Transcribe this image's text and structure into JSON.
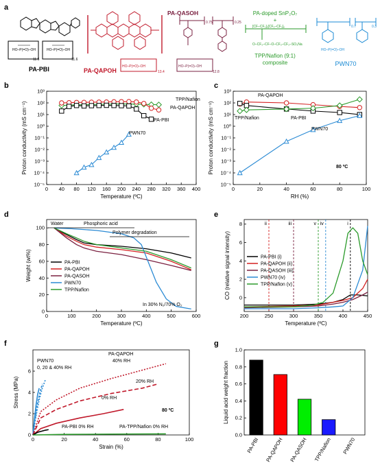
{
  "panel_a": {
    "panel_label": "a",
    "structures": [
      {
        "name": "PA-PBI",
        "color": "#000000",
        "subscripts": [
          "11.6",
          "11.6"
        ]
      },
      {
        "name": "PA-QAPOH",
        "color": "#c0182a",
        "subscripts": [
          "13.4"
        ]
      },
      {
        "name": "PA-QASOH",
        "color": "#7a2040",
        "subscripts": [
          "0.75",
          "0.25",
          "12.8"
        ]
      },
      {
        "name": "PA-doped SnP₂O₇ + TPP/Nafion (9:1) composite",
        "lines": [
          "PA-doped SnP₂O₇",
          "+",
          "TPP/Nafion (9:1)",
          "composite"
        ],
        "color": "#2a9a2a"
      },
      {
        "name": "PWN70",
        "color": "#1a8ad4",
        "subscripts": [
          "0.7",
          "0.3"
        ]
      }
    ]
  },
  "chart_data": [
    {
      "panel": "b",
      "type": "line",
      "xlabel": "Temperature (ºC)",
      "ylabel": "Proton conductivity (mS cm⁻¹)",
      "xlim": [
        0,
        400
      ],
      "ylim_log10": [
        -5,
        3
      ],
      "yscale": "log",
      "xticks": [
        "0",
        "40",
        "80",
        "120",
        "160",
        "200",
        "240",
        "280",
        "320",
        "360",
        "400"
      ],
      "yticks": [
        "10⁻⁵",
        "10⁻⁴",
        "10⁻³",
        "10⁻²",
        "10⁻¹",
        "10⁰",
        "10¹",
        "10²",
        "10³"
      ],
      "series": [
        {
          "name": "TPP/Nafion",
          "color": "#2a9a2a",
          "marker": "diamond",
          "x": [
            40,
            60,
            80,
            100,
            120,
            140,
            160,
            180,
            200,
            220,
            240,
            260,
            280,
            300
          ],
          "y": [
            60,
            65,
            68,
            70,
            72,
            75,
            78,
            80,
            82,
            80,
            78,
            75,
            72,
            70
          ]
        },
        {
          "name": "PA-QAPOH",
          "color": "#d42020",
          "marker": "circle",
          "x": [
            40,
            60,
            80,
            100,
            120,
            140,
            160,
            180,
            200,
            220,
            240,
            260,
            280,
            300
          ],
          "y": [
            100,
            105,
            110,
            112,
            115,
            118,
            120,
            125,
            128,
            130,
            120,
            90,
            35,
            25
          ]
        },
        {
          "name": "PA-PBI",
          "color": "#000000",
          "marker": "square",
          "x": [
            40,
            60,
            80,
            100,
            120,
            140,
            160,
            180,
            200,
            220,
            240,
            260,
            280
          ],
          "y": [
            20,
            50,
            60,
            55,
            58,
            60,
            62,
            60,
            58,
            55,
            30,
            8,
            4
          ]
        },
        {
          "name": "PWN70",
          "color": "#2a8ad4",
          "marker": "triangle",
          "x": [
            80,
            100,
            120,
            140,
            160,
            180,
            200,
            220
          ],
          "y": [
            0.0001,
            0.0003,
            0.0005,
            0.002,
            0.006,
            0.015,
            0.04,
            0.2
          ]
        }
      ]
    },
    {
      "panel": "c",
      "type": "line",
      "xlabel": "RH (%)",
      "ylabel": "Proton conductivity (mS cm⁻¹)",
      "annotation": "80 ºC",
      "xlim": [
        0,
        100
      ],
      "ylim_log10": [
        -5,
        3
      ],
      "yscale": "log",
      "xticks": [
        "0",
        "20",
        "40",
        "60",
        "80",
        "100"
      ],
      "yticks": [
        "10⁻⁵",
        "10⁻⁴",
        "10⁻³",
        "10⁻²",
        "10⁻¹",
        "10⁰",
        "10¹",
        "10²",
        "10³"
      ],
      "series": [
        {
          "name": "PA-QAPOH",
          "color": "#d42020",
          "marker": "circle",
          "x": [
            5,
            10,
            40,
            60,
            80,
            95
          ],
          "y": [
            80,
            120,
            100,
            70,
            50,
            40
          ]
        },
        {
          "name": "PA-PBI",
          "color": "#000000",
          "marker": "square",
          "x": [
            5,
            10,
            40,
            60,
            80,
            95
          ],
          "y": [
            90,
            60,
            30,
            20,
            15,
            10
          ]
        },
        {
          "name": "TPP/Nafion",
          "color": "#2a9a2a",
          "marker": "diamond",
          "x": [
            5,
            10,
            40,
            60,
            80,
            95
          ],
          "y": [
            20,
            25,
            30,
            35,
            60,
            200
          ]
        },
        {
          "name": "PWN70",
          "color": "#2a8ad4",
          "marker": "triangle",
          "x": [
            5,
            40,
            60,
            80,
            95
          ],
          "y": [
            0.0001,
            0.05,
            0.5,
            3,
            8
          ]
        }
      ]
    },
    {
      "panel": "d",
      "type": "line",
      "xlabel": "Temperature (ºC)",
      "ylabel": "Weight (wt%)",
      "annotation": "In 30% N₂/70% O₂",
      "region_labels": [
        "Water",
        "Phosphoric acid",
        "Polymer degradation"
      ],
      "xlim": [
        0,
        600
      ],
      "ylim": [
        0,
        110
      ],
      "xticks": [
        "0",
        "100",
        "200",
        "300",
        "400",
        "500",
        "600"
      ],
      "yticks": [
        "0",
        "20",
        "40",
        "60",
        "80",
        "100"
      ],
      "series": [
        {
          "name": "PA-PBI",
          "color": "#000000",
          "x": [
            30,
            80,
            120,
            150,
            200,
            300,
            400,
            500,
            580
          ],
          "y": [
            100,
            92,
            86,
            82,
            80,
            78,
            75,
            70,
            64
          ]
        },
        {
          "name": "PA-QAPOH",
          "color": "#d42020",
          "x": [
            30,
            80,
            120,
            150,
            200,
            300,
            400,
            500,
            580
          ],
          "y": [
            100,
            90,
            84,
            80,
            77,
            74,
            70,
            60,
            50
          ]
        },
        {
          "name": "PA-QASOH",
          "color": "#7a2040",
          "x": [
            30,
            80,
            120,
            150,
            200,
            300,
            400,
            500,
            580
          ],
          "y": [
            100,
            88,
            80,
            76,
            72,
            68,
            62,
            55,
            49
          ]
        },
        {
          "name": "PWN70",
          "color": "#2a8ad4",
          "x": [
            30,
            100,
            200,
            300,
            350,
            380,
            400,
            440,
            480,
            520,
            580
          ],
          "y": [
            100,
            99,
            97,
            93,
            88,
            80,
            65,
            35,
            15,
            6,
            3
          ]
        },
        {
          "name": "TPP/Nafion",
          "color": "#2a9a2a",
          "x": [
            30,
            80,
            120,
            150,
            200,
            300,
            400,
            500,
            580
          ],
          "y": [
            100,
            93,
            88,
            84,
            80,
            76,
            72,
            62,
            52
          ]
        }
      ]
    },
    {
      "panel": "e",
      "type": "line",
      "xlabel": "Temperature (ºC)",
      "ylabel": "CO (relative signal intensity)",
      "xlim": [
        200,
        450
      ],
      "ylim": [
        -1.5,
        8.5
      ],
      "xticks": [
        "200",
        "250",
        "300",
        "350",
        "400",
        "450"
      ],
      "yticks": [
        "0",
        "2",
        "4",
        "6",
        "8"
      ],
      "markers": [
        {
          "label": "ii",
          "x": 250,
          "color": "#d42020"
        },
        {
          "label": "iii",
          "x": 300,
          "color": "#7a2040"
        },
        {
          "label": "v",
          "x": 350,
          "color": "#2a9a2a"
        },
        {
          "label": "iv",
          "x": 365,
          "color": "#2a8ad4"
        },
        {
          "label": "i",
          "x": 415,
          "color": "#000000"
        }
      ],
      "series": [
        {
          "name": "PA-PBI (i)",
          "color": "#000000",
          "x": [
            200,
            300,
            350,
            380,
            400,
            415,
            430,
            450
          ],
          "y": [
            -0.8,
            -0.8,
            -0.7,
            -0.5,
            -0.2,
            0.3,
            0.3,
            0.2
          ]
        },
        {
          "name": "PA-QAPOH (ii)",
          "color": "#d42020",
          "x": [
            200,
            300,
            350,
            380,
            400,
            420,
            440,
            450
          ],
          "y": [
            -1,
            -0.9,
            -0.8,
            -0.5,
            -0.3,
            0,
            1,
            2
          ]
        },
        {
          "name": "PA-QASOH (iii)",
          "color": "#7a2040",
          "x": [
            200,
            300,
            350,
            380,
            400,
            420,
            440,
            450
          ],
          "y": [
            -1.1,
            -1,
            -0.9,
            -0.7,
            -0.5,
            -0.2,
            0.3,
            0.6
          ]
        },
        {
          "name": "PWN70 (iv)",
          "color": "#2a8ad4",
          "x": [
            200,
            300,
            350,
            380,
            400,
            420,
            430,
            440,
            450
          ],
          "y": [
            -1.2,
            -1.2,
            -1.1,
            -1,
            -0.9,
            0,
            1.5,
            3,
            7.8
          ]
        },
        {
          "name": "TPP/Nafion (v)",
          "color": "#2a9a2a",
          "x": [
            200,
            300,
            340,
            360,
            380,
            400,
            410,
            420,
            430,
            440,
            450
          ],
          "y": [
            -1,
            -1,
            -0.8,
            -0.5,
            0.5,
            4,
            7,
            7.6,
            7,
            4,
            2.5
          ]
        }
      ]
    },
    {
      "panel": "f",
      "type": "line",
      "xlabel": "Strain (%)",
      "ylabel": "Stress (MPa)",
      "annotation": "80 ºC",
      "xlim": [
        0,
        100
      ],
      "ylim": [
        0,
        8
      ],
      "xticks": [
        "0",
        "20",
        "40",
        "60",
        "80",
        "100"
      ],
      "yticks": [
        "0",
        "2",
        "4",
        "6"
      ],
      "curve_labels": [
        {
          "text": "PWN70",
          "color": "#2a8ad4"
        },
        {
          "text": "0, 20 & 40% RH",
          "color": "#2a8ad4"
        },
        {
          "text": "PA-QAPOH",
          "color": "#d42020"
        },
        {
          "text": "40% RH",
          "color": "#d42020"
        },
        {
          "text": "20% RH",
          "color": "#d42020"
        },
        {
          "text": "0% RH",
          "color": "#d42020"
        },
        {
          "text": "PA-PBI 0% RH",
          "color": "#000000"
        },
        {
          "text": "PA-TPP/Nafion 0% RH",
          "color": "#2a9a2a"
        }
      ],
      "series": [
        {
          "name": "PWN70 0% RH",
          "color": "#2a8ad4",
          "x": [
            0,
            1,
            2,
            3,
            4
          ],
          "y": [
            0,
            1.5,
            2.8,
            3.8,
            4.4
          ]
        },
        {
          "name": "PWN70 20% RH",
          "color": "#2a8ad4",
          "dash": "3,2",
          "x": [
            0,
            1.5,
            3,
            4.5,
            6
          ],
          "y": [
            0,
            1.6,
            3,
            4,
            4.8
          ]
        },
        {
          "name": "PWN70 40% RH",
          "color": "#2a8ad4",
          "dash": "2,2",
          "x": [
            0,
            2,
            4,
            6,
            8
          ],
          "y": [
            0,
            1.8,
            3.3,
            4.4,
            5.2
          ]
        },
        {
          "name": "PA-QAPOH 40% RH",
          "color": "#c0182a",
          "dash": "2,2",
          "x": [
            0,
            5,
            15,
            30,
            50,
            70,
            85
          ],
          "y": [
            0,
            2.2,
            3.3,
            4.4,
            5.3,
            6.1,
            6.7
          ]
        },
        {
          "name": "PA-QAPOH 20% RH",
          "color": "#c0182a",
          "dash": "6,3",
          "x": [
            0,
            5,
            15,
            30,
            50,
            70,
            80
          ],
          "y": [
            0,
            1.6,
            2.4,
            3.2,
            3.9,
            4.4,
            4.8
          ]
        },
        {
          "name": "PA-QAPOH 0% RH",
          "color": "#c0182a",
          "x": [
            0,
            5,
            15,
            30,
            45,
            58
          ],
          "y": [
            0,
            0.6,
            1.1,
            1.6,
            2.0,
            2.4
          ]
        },
        {
          "name": "PA-PBI 0% RH",
          "color": "#000000",
          "x": [
            0,
            3,
            8,
            10
          ],
          "y": [
            0,
            0.25,
            0.45,
            0.5
          ]
        },
        {
          "name": "PA-TPP/Nafion 0% RH",
          "color": "#2a9a2a",
          "x": [
            0,
            20,
            50,
            85
          ],
          "y": [
            0,
            0.05,
            0.08,
            0.1
          ]
        }
      ]
    },
    {
      "panel": "g",
      "type": "bar",
      "ylabel": "Liquid acid weight fraction",
      "ylim": [
        0,
        1.0
      ],
      "yticks": [
        "0.0",
        "0.2",
        "0.4",
        "0.6",
        "0.8",
        "1.0"
      ],
      "categories": [
        "PA-PBI",
        "PA-QAPOH",
        "PA-QASOH",
        "TPP/Nafion",
        "PWN70"
      ],
      "values": [
        0.88,
        0.71,
        0.42,
        0.18,
        0
      ],
      "colors": [
        "#000000",
        "#ff0000",
        "#00ee00",
        "#1a1aff",
        "#ffffff"
      ]
    }
  ]
}
